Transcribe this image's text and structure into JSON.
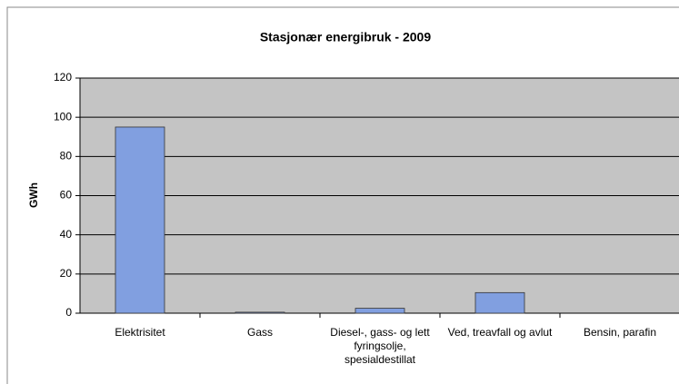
{
  "chart_data": {
    "type": "bar",
    "title": "Stasjonær energibruk - 2009",
    "y_label": "GWh",
    "categories": [
      "Elektrisitet",
      "Gass",
      "Diesel-, gass- og lett fyringsolje, spesialdestillat",
      "Ved, treavfall og avlut",
      "Bensin, parafin"
    ],
    "values": [
      95,
      0.5,
      2.5,
      10.5,
      0
    ],
    "color": "#819fe0",
    "ylim": [
      0,
      120
    ],
    "yticks": [
      0,
      20,
      40,
      60,
      80,
      100,
      120
    ],
    "grid": true
  }
}
